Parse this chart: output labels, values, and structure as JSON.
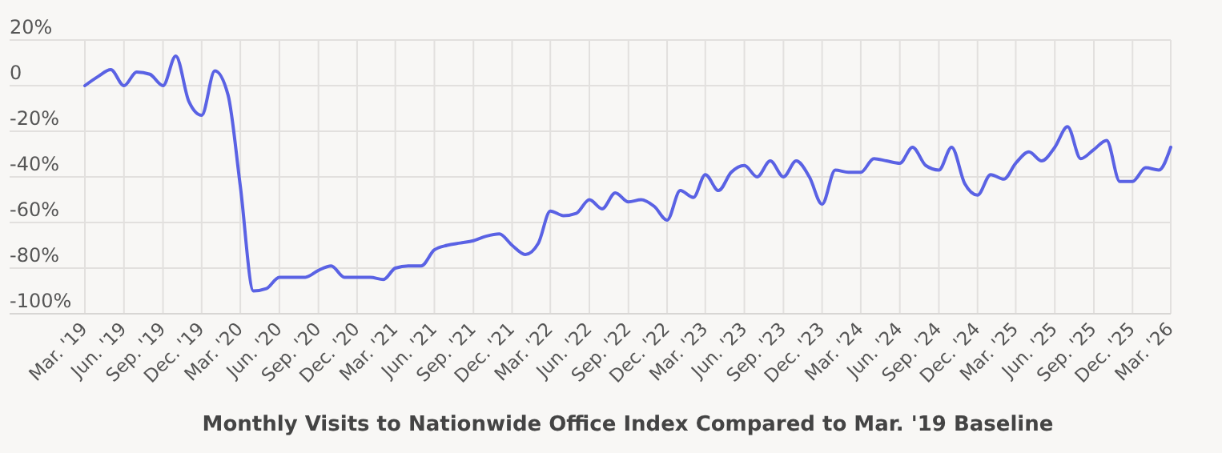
{
  "chart_data": {
    "type": "line",
    "title": "Monthly Visits to Nationwide Office Index Compared to Mar. '19 Baseline",
    "x": [
      "2019-03",
      "2019-04",
      "2019-05",
      "2019-06",
      "2019-07",
      "2019-08",
      "2019-09",
      "2019-10",
      "2019-11",
      "2019-12",
      "2020-01",
      "2020-02",
      "2020-03",
      "2020-04",
      "2020-05",
      "2020-06",
      "2020-07",
      "2020-08",
      "2020-09",
      "2020-10",
      "2020-11",
      "2020-12",
      "2021-01",
      "2021-02",
      "2021-03",
      "2021-04",
      "2021-05",
      "2021-06",
      "2021-07",
      "2021-08",
      "2021-09",
      "2021-10",
      "2021-11",
      "2021-12",
      "2022-01",
      "2022-02",
      "2022-03",
      "2022-04",
      "2022-05",
      "2022-06",
      "2022-07",
      "2022-08",
      "2022-09",
      "2022-10",
      "2022-11",
      "2022-12",
      "2023-01",
      "2023-02",
      "2023-03",
      "2023-04",
      "2023-05",
      "2023-06",
      "2023-07",
      "2023-08",
      "2023-09",
      "2023-10",
      "2023-11",
      "2023-12",
      "2024-01",
      "2024-02",
      "2024-03",
      "2024-04",
      "2024-05",
      "2024-06",
      "2024-07",
      "2024-08",
      "2024-09",
      "2024-10",
      "2024-11",
      "2024-12",
      "2025-01",
      "2025-02",
      "2025-03",
      "2025-04",
      "2025-05",
      "2025-06",
      "2025-07",
      "2025-08",
      "2025-09",
      "2025-10",
      "2025-11",
      "2025-12",
      "2026-01",
      "2026-02",
      "2026-03"
    ],
    "series": [
      {
        "color": "#5a62e4",
        "values": [
          0,
          4,
          7,
          0,
          6,
          5,
          0,
          13,
          -7,
          -13,
          6.5,
          -4,
          -44,
          -90,
          -89,
          -84,
          -84,
          -84,
          -81,
          -79,
          -84,
          -84,
          -84,
          -85,
          -80,
          -79,
          -79,
          -72,
          -70,
          -69,
          -68,
          -66,
          -65,
          -70,
          -74,
          -69,
          -55,
          -57,
          -56,
          -50,
          -54,
          -47,
          -51,
          -50,
          -53,
          -59,
          -46,
          -49,
          -39,
          -46,
          -38,
          -35,
          -40,
          -33,
          -40,
          -33,
          -40,
          -52,
          -37,
          -38,
          -38,
          -32,
          -33,
          -34,
          -27,
          -35,
          -37,
          -27,
          -43,
          -48,
          -39,
          -41,
          -34,
          -29,
          -33,
          -27,
          -18,
          -32,
          -28,
          -24,
          -42,
          -42,
          -36,
          -37,
          -27
        ]
      }
    ],
    "ylim": [
      -100,
      20
    ],
    "yticks": [
      {
        "value": 20,
        "label": "20%"
      },
      0,
      {
        "value": -20,
        "label": "-20%"
      },
      {
        "value": -40,
        "label": "-40%"
      },
      {
        "value": -60,
        "label": "-60%"
      },
      {
        "value": -80,
        "label": "-80%"
      },
      {
        "value": -100,
        "label": "-100%"
      }
    ],
    "xlim": [
      "2019-03",
      "2026-03"
    ],
    "xticks": [
      {
        "value": "2019-03",
        "label": "Mar. '19"
      },
      {
        "value": "2019-06",
        "label": "Jun. '19"
      },
      {
        "value": "2019-09",
        "label": "Sep. '19"
      },
      {
        "value": "2019-12",
        "label": "Dec. '19"
      },
      {
        "value": "2020-03",
        "label": "Mar. '20"
      },
      {
        "value": "2020-06",
        "label": "Jun. '20"
      },
      {
        "value": "2020-09",
        "label": "Sep. '20"
      },
      {
        "value": "2020-12",
        "label": "Dec. '20"
      },
      {
        "value": "2021-03",
        "label": "Mar. '21"
      },
      {
        "value": "2021-06",
        "label": "Jun. '21"
      },
      {
        "value": "2021-09",
        "label": "Sep. '21"
      },
      {
        "value": "2021-12",
        "label": "Dec. '21"
      },
      {
        "value": "2022-03",
        "label": "Mar. '22"
      },
      {
        "value": "2022-06",
        "label": "Jun. '22"
      },
      {
        "value": "2022-09",
        "label": "Sep. '22"
      },
      {
        "value": "2022-12",
        "label": "Dec. '22"
      },
      {
        "value": "2023-03",
        "label": "Mar. '23"
      },
      {
        "value": "2023-06",
        "label": "Jun. '23"
      },
      {
        "value": "2023-09",
        "label": "Sep. '23"
      },
      {
        "value": "2023-12",
        "label": "Dec. '23"
      },
      {
        "value": "2024-03",
        "label": "Mar. '24"
      },
      {
        "value": "2024-06",
        "label": "Jun. '24"
      },
      {
        "value": "2024-09",
        "label": "Sep. '24"
      },
      {
        "value": "2024-12",
        "label": "Dec. '24"
      },
      {
        "value": "2025-03",
        "label": "Mar. '25"
      },
      {
        "value": "2025-06",
        "label": "Jun. '25"
      },
      {
        "value": "2025-09",
        "label": "Sep. '25"
      },
      {
        "value": "2025-12",
        "label": "Dec. '25"
      },
      {
        "value": "2026-03",
        "label": "Mar. '26"
      }
    ],
    "grid": true,
    "marker": "none",
    "line_style": "solid"
  }
}
